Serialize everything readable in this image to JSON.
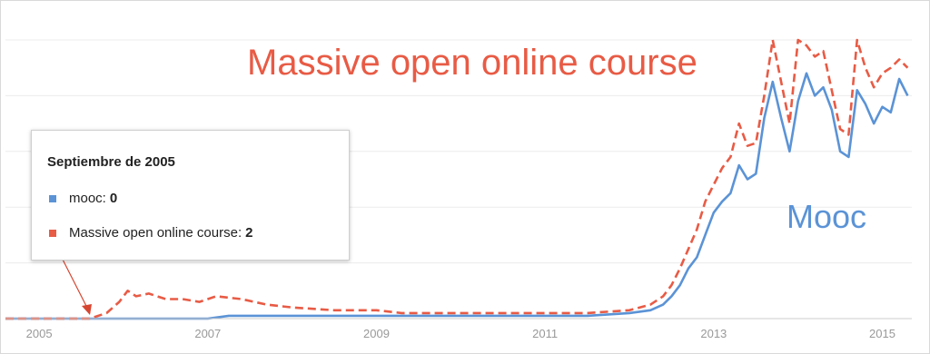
{
  "chart_data": {
    "type": "line",
    "title": "Massive open online course",
    "annotation": "Mooc",
    "x_ticks": [
      "2005",
      "2007",
      "2009",
      "2011",
      "2013",
      "2015"
    ],
    "xlim": [
      2004.6,
      2015.35
    ],
    "ylim": [
      0,
      100
    ],
    "grid": true,
    "series": [
      {
        "name": "mooc",
        "color": "#5b93d6",
        "style": "solid",
        "x": [
          2004.6,
          2007.0,
          2007.25,
          2008.0,
          2009.0,
          2010.0,
          2011.0,
          2011.5,
          2012.0,
          2012.25,
          2012.4,
          2012.5,
          2012.6,
          2012.7,
          2012.8,
          2012.9,
          2013.0,
          2013.1,
          2013.2,
          2013.3,
          2013.4,
          2013.5,
          2013.6,
          2013.7,
          2013.8,
          2013.9,
          2014.0,
          2014.1,
          2014.2,
          2014.3,
          2014.4,
          2014.5,
          2014.6,
          2014.7,
          2014.8,
          2014.9,
          2015.0,
          2015.1,
          2015.2,
          2015.3
        ],
        "values": [
          0,
          0,
          1,
          1,
          1,
          1,
          1,
          1,
          2,
          3,
          5,
          8,
          12,
          18,
          22,
          30,
          38,
          42,
          45,
          55,
          50,
          52,
          72,
          85,
          72,
          60,
          78,
          88,
          80,
          83,
          75,
          60,
          58,
          82,
          77,
          70,
          76,
          74,
          86,
          80
        ]
      },
      {
        "name": "Massive open online course",
        "color": "#e85b45",
        "style": "dashed",
        "x": [
          2004.6,
          2005.6,
          2005.8,
          2005.95,
          2006.05,
          2006.15,
          2006.3,
          2006.5,
          2006.7,
          2006.9,
          2007.1,
          2007.4,
          2007.7,
          2008.0,
          2008.5,
          2009.0,
          2009.3,
          2009.6,
          2010.0,
          2010.5,
          2011.0,
          2011.5,
          2012.0,
          2012.25,
          2012.4,
          2012.5,
          2012.6,
          2012.7,
          2012.8,
          2012.9,
          2013.0,
          2013.1,
          2013.2,
          2013.3,
          2013.4,
          2013.5,
          2013.6,
          2013.7,
          2013.8,
          2013.9,
          2014.0,
          2014.1,
          2014.2,
          2014.3,
          2014.4,
          2014.5,
          2014.6,
          2014.7,
          2014.8,
          2014.9,
          2015.0,
          2015.1,
          2015.2,
          2015.3
        ],
        "values": [
          0,
          0,
          2,
          6,
          10,
          8,
          9,
          7,
          7,
          6,
          8,
          7,
          5,
          4,
          3,
          3,
          2,
          2,
          2,
          2,
          2,
          2,
          3,
          5,
          8,
          12,
          18,
          25,
          32,
          42,
          48,
          54,
          58,
          70,
          62,
          63,
          80,
          100,
          85,
          70,
          100,
          98,
          94,
          96,
          82,
          68,
          66,
          100,
          90,
          83,
          88,
          90,
          93,
          90
        ]
      }
    ]
  },
  "tooltip": {
    "title": "Septiembre de 2005",
    "row1_label": "mooc:",
    "row1_value": "0",
    "row1_color": "#5b93d6",
    "row2_label": "Massive open online course:",
    "row2_value": "2",
    "row2_color": "#e85b45"
  },
  "colors": {
    "grid": "#ececec",
    "axis": "#cccccc",
    "tick_text": "#999999",
    "arrow": "#d64530"
  }
}
